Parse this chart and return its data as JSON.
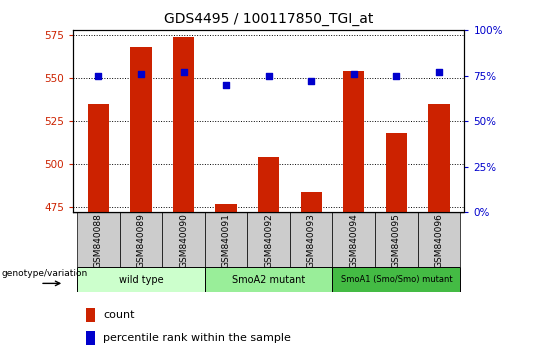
{
  "title": "GDS4495 / 100117850_TGI_at",
  "samples": [
    "GSM840088",
    "GSM840089",
    "GSM840090",
    "GSM840091",
    "GSM840092",
    "GSM840093",
    "GSM840094",
    "GSM840095",
    "GSM840096"
  ],
  "counts": [
    535,
    568,
    574,
    477,
    504,
    484,
    554,
    518,
    535
  ],
  "percentiles": [
    75,
    76,
    77,
    70,
    75,
    72,
    76,
    75,
    77
  ],
  "ylim_left": [
    472,
    578
  ],
  "ylim_right": [
    0,
    100
  ],
  "yticks_left": [
    475,
    500,
    525,
    550,
    575
  ],
  "yticks_right": [
    0,
    25,
    50,
    75,
    100
  ],
  "bar_color": "#cc2200",
  "dot_color": "#0000cc",
  "grid_color": "#000000",
  "groups": [
    {
      "label": "wild type",
      "indices": [
        0,
        1,
        2
      ],
      "color": "#ccffcc"
    },
    {
      "label": "SmoA2 mutant",
      "indices": [
        3,
        4,
        5
      ],
      "color": "#99ee99"
    },
    {
      "label": "SmoA1 (Smo/Smo) mutant",
      "indices": [
        6,
        7,
        8
      ],
      "color": "#44bb44"
    }
  ],
  "xlabel_genotype": "genotype/variation",
  "legend_count_label": "count",
  "legend_pct_label": "percentile rank within the sample",
  "title_fontsize": 10,
  "tick_label_fontsize": 7.5,
  "bar_width": 0.5,
  "bg_color": "#ffffff",
  "plot_bg_color": "#ffffff",
  "tick_color_left": "#cc2200",
  "tick_color_right": "#0000cc",
  "sample_box_color": "#cccccc"
}
